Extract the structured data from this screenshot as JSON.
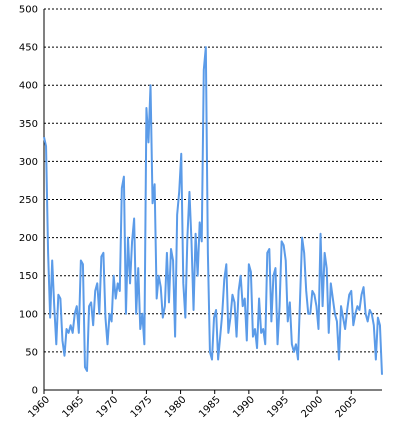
{
  "chart_data": {
    "type": "line",
    "title": "",
    "xlabel": "",
    "ylabel": "",
    "xlim": [
      1960,
      2009.5
    ],
    "ylim": [
      0,
      500
    ],
    "y_ticks": [
      0,
      50,
      100,
      150,
      200,
      250,
      300,
      350,
      400,
      450,
      500
    ],
    "y_tick_labels": [
      "0",
      "50",
      "100",
      "150",
      "200",
      "250",
      "300",
      "350",
      "400",
      "450",
      "500"
    ],
    "x_ticks": [
      1960,
      1965,
      1970,
      1975,
      1980,
      1985,
      1990,
      1995,
      2000,
      2005
    ],
    "x_tick_labels": [
      "1960",
      "1965",
      "1970",
      "1975",
      "1980",
      "1985",
      "1990",
      "1995",
      "2000",
      "2005"
    ],
    "grid": "horizontal dashed",
    "legend": "none",
    "line_color": "#5B9BE8",
    "series": [
      {
        "x": [
          1960.0,
          1960.3,
          1960.6,
          1960.9,
          1961.2,
          1961.5,
          1961.8,
          1962.1,
          1962.4,
          1962.7,
          1963.0,
          1963.3,
          1963.6,
          1963.9,
          1964.2,
          1964.5,
          1964.8,
          1965.1,
          1965.4,
          1965.7,
          1966.0,
          1966.3,
          1966.6,
          1966.9,
          1967.2,
          1967.5,
          1967.8,
          1968.1,
          1968.4,
          1968.7,
          1969.0,
          1969.3,
          1969.6,
          1969.9,
          1970.2,
          1970.5,
          1970.8,
          1971.1,
          1971.4,
          1971.7,
          1972.0,
          1972.3,
          1972.6,
          1972.9,
          1973.2,
          1973.5,
          1973.8,
          1974.1,
          1974.4,
          1974.7,
          1975.0,
          1975.3,
          1975.6,
          1975.9,
          1976.2,
          1976.5,
          1976.8,
          1977.1,
          1977.4,
          1977.7,
          1978.0,
          1978.3,
          1978.6,
          1978.9,
          1979.2,
          1979.5,
          1979.8,
          1980.1,
          1980.4,
          1980.7,
          1981.0,
          1981.3,
          1981.6,
          1981.9,
          1982.2,
          1982.5,
          1982.8,
          1983.1,
          1983.4,
          1983.7,
          1984.0,
          1984.3,
          1984.6,
          1984.9,
          1985.2,
          1985.5,
          1985.8,
          1986.1,
          1986.4,
          1986.7,
          1987.0,
          1987.3,
          1987.6,
          1987.9,
          1988.2,
          1988.5,
          1988.8,
          1989.1,
          1989.4,
          1989.7,
          1990.0,
          1990.3,
          1990.6,
          1990.9,
          1991.2,
          1991.5,
          1991.8,
          1992.1,
          1992.4,
          1992.7,
          1993.0,
          1993.3,
          1993.6,
          1993.9,
          1994.2,
          1994.5,
          1994.8,
          1995.1,
          1995.4,
          1995.7,
          1996.0,
          1996.3,
          1996.6,
          1996.9,
          1997.2,
          1997.5,
          1997.8,
          1998.1,
          1998.4,
          1998.7,
          1999.0,
          1999.3,
          1999.6,
          1999.9,
          2000.2,
          2000.5,
          2000.8,
          2001.1,
          2001.4,
          2001.7,
          2002.0,
          2002.3,
          2002.6,
          2002.9,
          2003.2,
          2003.5,
          2003.8,
          2004.1,
          2004.4,
          2004.7,
          2005.0,
          2005.3,
          2005.6,
          2005.9,
          2006.2,
          2006.5,
          2006.8,
          2007.1,
          2007.4,
          2007.7,
          2008.0,
          2008.3,
          2008.6,
          2008.9,
          2009.2,
          2009.5
        ],
        "y": [
          332,
          320,
          180,
          95,
          170,
          110,
          60,
          125,
          120,
          65,
          45,
          80,
          75,
          85,
          75,
          100,
          110,
          75,
          170,
          165,
          30,
          25,
          110,
          115,
          85,
          130,
          140,
          100,
          175,
          180,
          95,
          60,
          100,
          90,
          150,
          120,
          140,
          130,
          265,
          280,
          100,
          200,
          140,
          195,
          225,
          100,
          160,
          80,
          100,
          60,
          370,
          325,
          400,
          245,
          270,
          120,
          150,
          135,
          95,
          110,
          180,
          115,
          185,
          170,
          70,
          230,
          260,
          310,
          140,
          95,
          200,
          260,
          195,
          105,
          205,
          150,
          220,
          195,
          420,
          450,
          180,
          50,
          40,
          95,
          105,
          40,
          70,
          100,
          145,
          165,
          75,
          95,
          125,
          115,
          70,
          130,
          150,
          110,
          120,
          65,
          165,
          155,
          70,
          80,
          55,
          120,
          75,
          80,
          60,
          180,
          185,
          90,
          150,
          160,
          60,
          110,
          195,
          190,
          170,
          90,
          115,
          60,
          50,
          60,
          40,
          120,
          200,
          180,
          130,
          100,
          100,
          130,
          125,
          110,
          80,
          205,
          110,
          180,
          160,
          75,
          140,
          120,
          100,
          90,
          40,
          110,
          95,
          80,
          105,
          125,
          130,
          85,
          100,
          110,
          105,
          125,
          135,
          100,
          90,
          105,
          100,
          85,
          40,
          95,
          85,
          20
        ],
        "note": ""
      }
    ]
  }
}
